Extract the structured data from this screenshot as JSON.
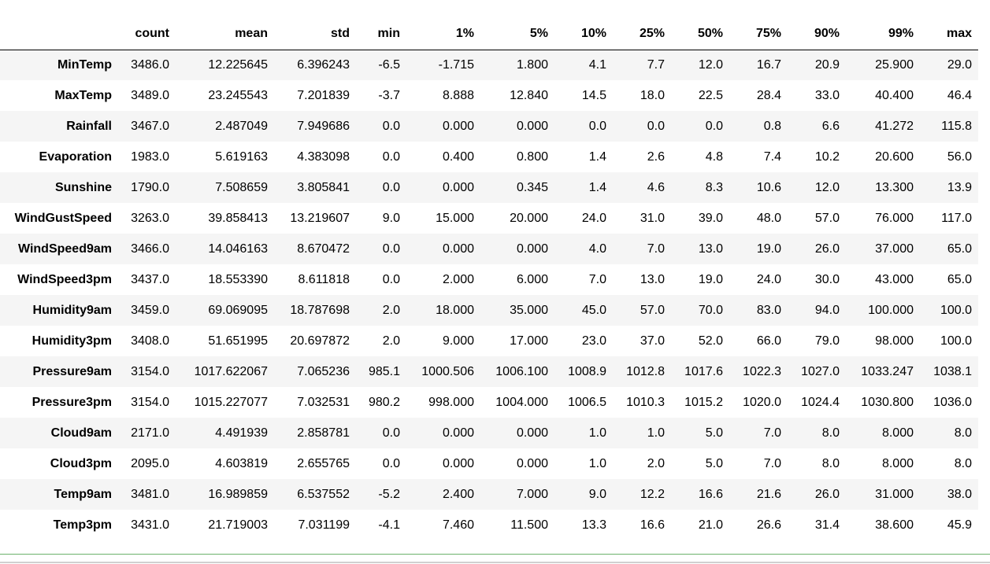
{
  "table": {
    "columns": [
      "count",
      "mean",
      "std",
      "min",
      "1%",
      "5%",
      "10%",
      "25%",
      "50%",
      "75%",
      "90%",
      "99%",
      "max"
    ],
    "rows": [
      {
        "label": "MinTemp",
        "cells": [
          "3486.0",
          "12.225645",
          "6.396243",
          "-6.5",
          "-1.715",
          "1.800",
          "4.1",
          "7.7",
          "12.0",
          "16.7",
          "20.9",
          "25.900",
          "29.0"
        ]
      },
      {
        "label": "MaxTemp",
        "cells": [
          "3489.0",
          "23.245543",
          "7.201839",
          "-3.7",
          "8.888",
          "12.840",
          "14.5",
          "18.0",
          "22.5",
          "28.4",
          "33.0",
          "40.400",
          "46.4"
        ]
      },
      {
        "label": "Rainfall",
        "cells": [
          "3467.0",
          "2.487049",
          "7.949686",
          "0.0",
          "0.000",
          "0.000",
          "0.0",
          "0.0",
          "0.0",
          "0.8",
          "6.6",
          "41.272",
          "115.8"
        ]
      },
      {
        "label": "Evaporation",
        "cells": [
          "1983.0",
          "5.619163",
          "4.383098",
          "0.0",
          "0.400",
          "0.800",
          "1.4",
          "2.6",
          "4.8",
          "7.4",
          "10.2",
          "20.600",
          "56.0"
        ]
      },
      {
        "label": "Sunshine",
        "cells": [
          "1790.0",
          "7.508659",
          "3.805841",
          "0.0",
          "0.000",
          "0.345",
          "1.4",
          "4.6",
          "8.3",
          "10.6",
          "12.0",
          "13.300",
          "13.9"
        ]
      },
      {
        "label": "WindGustSpeed",
        "cells": [
          "3263.0",
          "39.858413",
          "13.219607",
          "9.0",
          "15.000",
          "20.000",
          "24.0",
          "31.0",
          "39.0",
          "48.0",
          "57.0",
          "76.000",
          "117.0"
        ]
      },
      {
        "label": "WindSpeed9am",
        "cells": [
          "3466.0",
          "14.046163",
          "8.670472",
          "0.0",
          "0.000",
          "0.000",
          "4.0",
          "7.0",
          "13.0",
          "19.0",
          "26.0",
          "37.000",
          "65.0"
        ]
      },
      {
        "label": "WindSpeed3pm",
        "cells": [
          "3437.0",
          "18.553390",
          "8.611818",
          "0.0",
          "2.000",
          "6.000",
          "7.0",
          "13.0",
          "19.0",
          "24.0",
          "30.0",
          "43.000",
          "65.0"
        ]
      },
      {
        "label": "Humidity9am",
        "cells": [
          "3459.0",
          "69.069095",
          "18.787698",
          "2.0",
          "18.000",
          "35.000",
          "45.0",
          "57.0",
          "70.0",
          "83.0",
          "94.0",
          "100.000",
          "100.0"
        ]
      },
      {
        "label": "Humidity3pm",
        "cells": [
          "3408.0",
          "51.651995",
          "20.697872",
          "2.0",
          "9.000",
          "17.000",
          "23.0",
          "37.0",
          "52.0",
          "66.0",
          "79.0",
          "98.000",
          "100.0"
        ]
      },
      {
        "label": "Pressure9am",
        "cells": [
          "3154.0",
          "1017.622067",
          "7.065236",
          "985.1",
          "1000.506",
          "1006.100",
          "1008.9",
          "1012.8",
          "1017.6",
          "1022.3",
          "1027.0",
          "1033.247",
          "1038.1"
        ]
      },
      {
        "label": "Pressure3pm",
        "cells": [
          "3154.0",
          "1015.227077",
          "7.032531",
          "980.2",
          "998.000",
          "1004.000",
          "1006.5",
          "1010.3",
          "1015.2",
          "1020.0",
          "1024.4",
          "1030.800",
          "1036.0"
        ]
      },
      {
        "label": "Cloud9am",
        "cells": [
          "2171.0",
          "4.491939",
          "2.858781",
          "0.0",
          "0.000",
          "0.000",
          "1.0",
          "1.0",
          "5.0",
          "7.0",
          "8.0",
          "8.000",
          "8.0"
        ]
      },
      {
        "label": "Cloud3pm",
        "cells": [
          "2095.0",
          "4.603819",
          "2.655765",
          "0.0",
          "0.000",
          "0.000",
          "1.0",
          "2.0",
          "5.0",
          "7.0",
          "8.0",
          "8.000",
          "8.0"
        ]
      },
      {
        "label": "Temp9am",
        "cells": [
          "3481.0",
          "16.989859",
          "6.537552",
          "-5.2",
          "2.400",
          "7.000",
          "9.0",
          "12.2",
          "16.6",
          "21.6",
          "26.0",
          "31.000",
          "38.0"
        ]
      },
      {
        "label": "Temp3pm",
        "cells": [
          "3431.0",
          "21.719003",
          "7.031199",
          "-4.1",
          "7.460",
          "11.500",
          "13.3",
          "16.6",
          "21.0",
          "26.6",
          "31.4",
          "38.600",
          "45.9"
        ]
      }
    ]
  }
}
